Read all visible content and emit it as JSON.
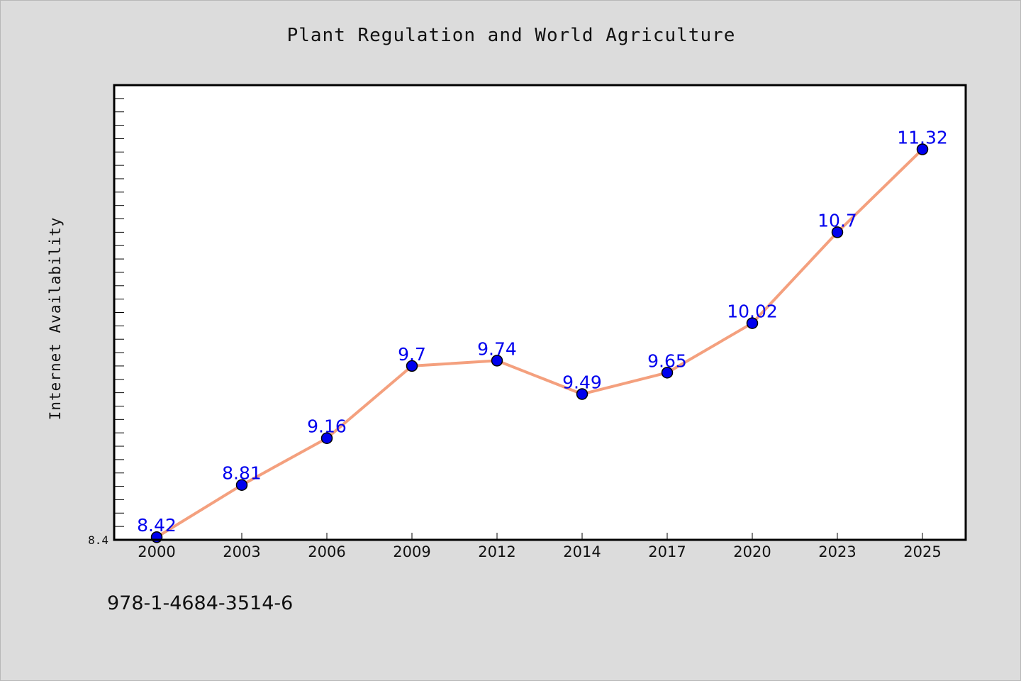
{
  "page": {
    "title": "Plant Regulation and World Agriculture",
    "isbn": "978-1-4684-3514-6"
  },
  "colors": {
    "background": "#dcdcdc",
    "plot_background": "#ffffff",
    "line": "#f4a07e",
    "marker": "#0000ee",
    "data_label": "#0000ee"
  },
  "chart_data": {
    "type": "line",
    "title": "Plant Regulation and World Agriculture",
    "xlabel": "",
    "ylabel": "Internet Availability",
    "categories": [
      "2000",
      "2003",
      "2006",
      "2009",
      "2012",
      "2014",
      "2017",
      "2020",
      "2023",
      "2025"
    ],
    "series": [
      {
        "values": [
          8.42,
          8.81,
          9.16,
          9.7,
          9.74,
          9.49,
          9.65,
          10.02,
          10.7,
          11.32
        ]
      }
    ],
    "data_labels": [
      "8.42",
      "8.81",
      "9.16",
      "9.7",
      "9.74",
      "9.49",
      "9.65",
      "10.02",
      "10.7",
      "11.32"
    ],
    "ylim": [
      8.4,
      11.8
    ],
    "y_tick_labels": [
      "8.4"
    ],
    "grid": false,
    "legend": "none",
    "markers": "circle"
  }
}
